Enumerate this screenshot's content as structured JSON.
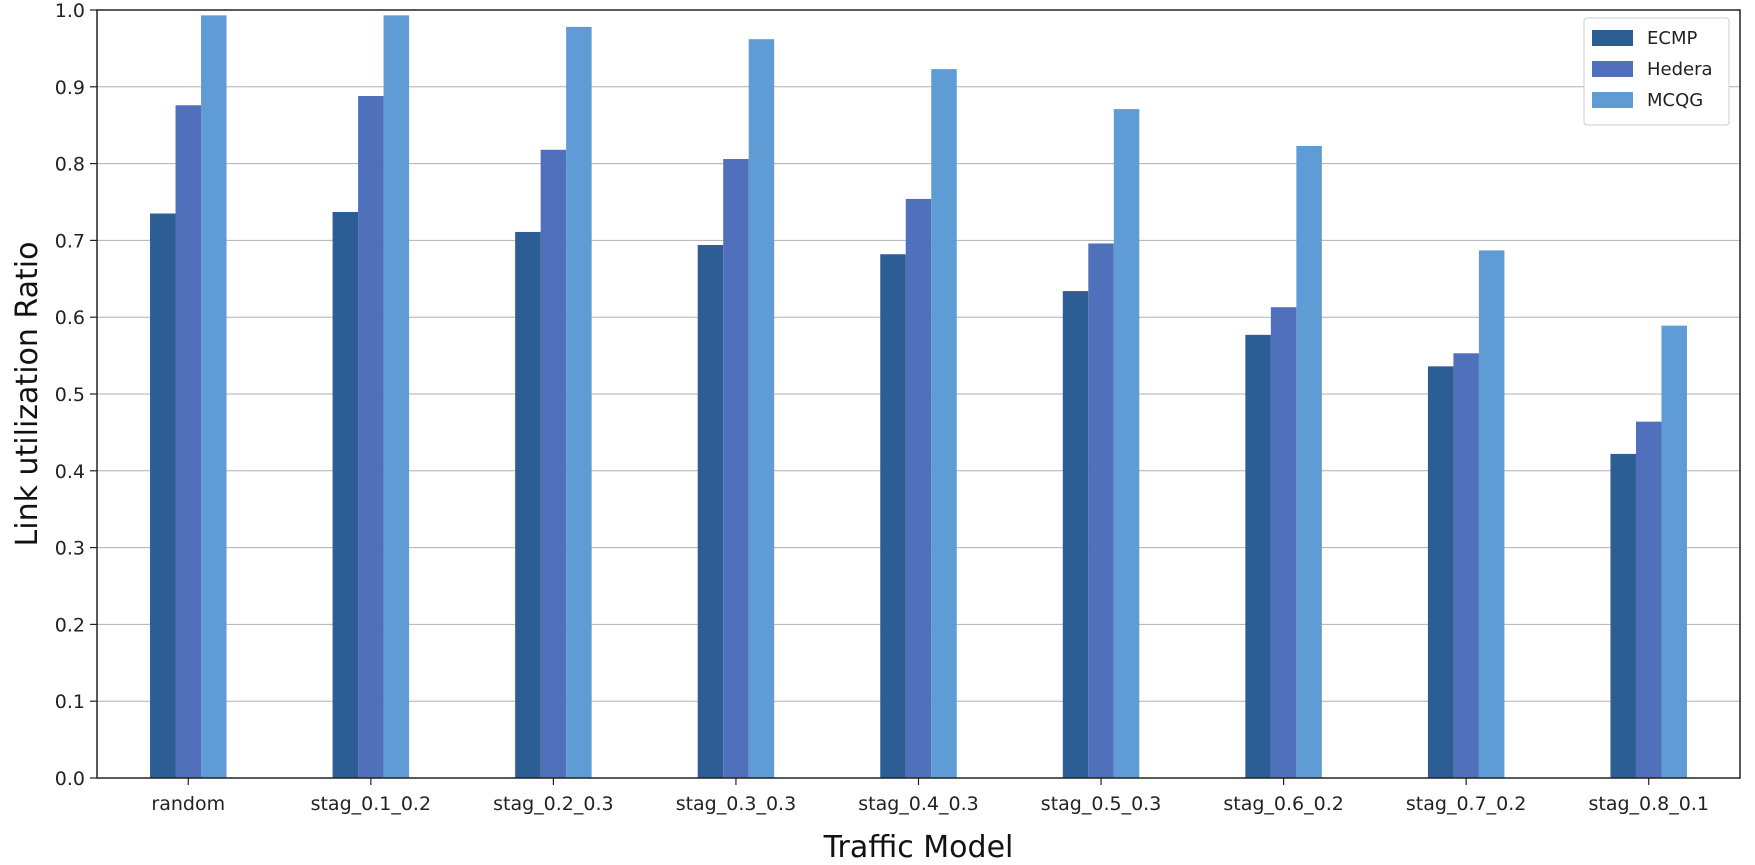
{
  "chart_data": {
    "type": "bar",
    "xlabel": "Traffic Model",
    "ylabel": "Link utilization Ratio",
    "categories": [
      "random",
      "stag_0.1_0.2",
      "stag_0.2_0.3",
      "stag_0.3_0.3",
      "stag_0.4_0.3",
      "stag_0.5_0.3",
      "stag_0.6_0.2",
      "stag_0.7_0.2",
      "stag_0.8_0.1"
    ],
    "series": [
      {
        "name": "ECMP",
        "color": "#2c5d94",
        "values": [
          0.735,
          0.737,
          0.711,
          0.694,
          0.682,
          0.634,
          0.577,
          0.536,
          0.422
        ]
      },
      {
        "name": "Hedera",
        "color": "#5170bb",
        "values": [
          0.876,
          0.888,
          0.818,
          0.806,
          0.754,
          0.696,
          0.613,
          0.553,
          0.464
        ]
      },
      {
        "name": "MCQG",
        "color": "#5f9bd5",
        "values": [
          0.993,
          0.993,
          0.978,
          0.962,
          0.923,
          0.871,
          0.823,
          0.687,
          0.589
        ]
      }
    ],
    "ylim": [
      0.0,
      1.0
    ],
    "yticks": [
      "0.0",
      "0.1",
      "0.2",
      "0.3",
      "0.4",
      "0.5",
      "0.6",
      "0.7",
      "0.8",
      "0.9",
      "1.0"
    ],
    "grid": "horizontal",
    "legend_position": "top-right"
  }
}
